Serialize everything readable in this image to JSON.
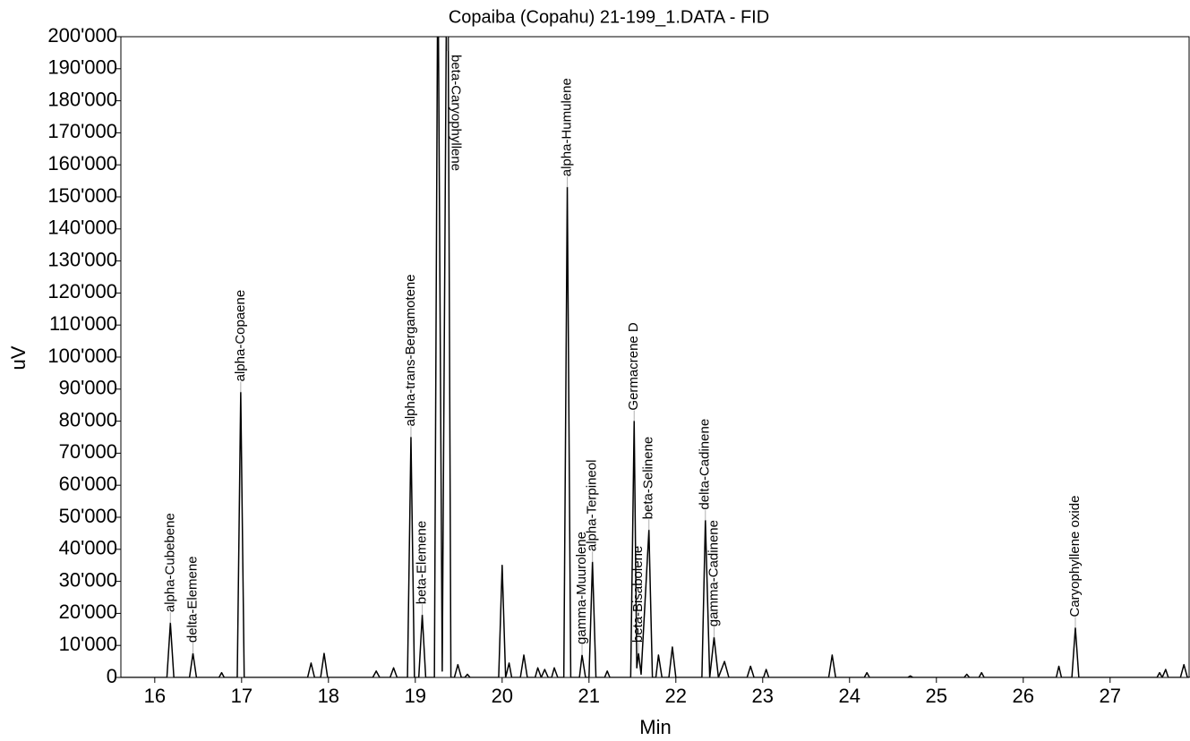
{
  "chart_data": {
    "type": "line",
    "title": "Copaiba (Copahu) 21-199_1.DATA - FID",
    "x_label": "Min",
    "y_label": "uV",
    "color": "#000000",
    "annotation_color": "#b0b0b0",
    "xlim": [
      15.61,
      27.92
    ],
    "ylim": [
      0,
      200000
    ],
    "xticks": [
      16,
      17,
      18,
      19,
      20,
      21,
      22,
      23,
      24,
      25,
      26,
      27
    ],
    "yticks": [
      0,
      {
        "value": 10000,
        "label": "10'000"
      },
      {
        "value": 20000,
        "label": "20'000"
      },
      {
        "value": 30000,
        "label": "30'000"
      },
      {
        "value": 40000,
        "label": "40'000"
      },
      {
        "value": 50000,
        "label": "50'000"
      },
      {
        "value": 60000,
        "label": "60'000"
      },
      {
        "value": 70000,
        "label": "70'000"
      },
      {
        "value": 80000,
        "label": "80'000"
      },
      {
        "value": 90000,
        "label": "90'000"
      },
      {
        "value": 100000,
        "label": "100'000"
      },
      {
        "value": 110000,
        "label": "110'000"
      },
      {
        "value": 120000,
        "label": "120'000"
      },
      {
        "value": 130000,
        "label": "130'000"
      },
      {
        "value": 140000,
        "label": "140'000"
      },
      {
        "value": 150000,
        "label": "150'000"
      },
      {
        "value": 160000,
        "label": "160'000"
      },
      {
        "value": 170000,
        "label": "170'000"
      },
      {
        "value": 180000,
        "label": "180'000"
      },
      {
        "value": 190000,
        "label": "190'000"
      },
      {
        "value": 200000,
        "label": "200'000"
      }
    ],
    "x": [
      15.61,
      16.14,
      16.18,
      16.22,
      16.4,
      16.44,
      16.48,
      16.74,
      16.77,
      16.8,
      16.95,
      16.99,
      17.03,
      17.76,
      17.8,
      17.84,
      17.91,
      17.95,
      17.99,
      18.51,
      18.55,
      18.59,
      18.71,
      18.75,
      18.79,
      18.91,
      18.95,
      18.99,
      19.04,
      19.08,
      19.12,
      19.22,
      19.26,
      19.31,
      19.37,
      19.41,
      19.45,
      19.49,
      19.53,
      19.57,
      19.6,
      19.63,
      19.96,
      20.0,
      20.04,
      20.08,
      20.11,
      20.21,
      20.25,
      20.29,
      20.38,
      20.41,
      20.45,
      20.49,
      20.53,
      20.57,
      20.6,
      20.64,
      20.71,
      20.75,
      20.79,
      20.89,
      20.92,
      20.96,
      21.0,
      21.04,
      21.08,
      21.18,
      21.21,
      21.24,
      21.48,
      21.52,
      21.55,
      21.57,
      21.6,
      21.69,
      21.73,
      21.77,
      21.8,
      21.84,
      21.92,
      21.96,
      22.0,
      22.3,
      22.34,
      22.39,
      22.44,
      22.49,
      22.56,
      22.61,
      22.82,
      22.86,
      22.9,
      23.01,
      23.04,
      23.07,
      23.76,
      23.8,
      23.84,
      24.17,
      24.2,
      24.23,
      24.67,
      24.7,
      24.73,
      25.32,
      25.35,
      25.38,
      25.49,
      25.52,
      25.55,
      26.38,
      26.41,
      26.44,
      26.56,
      26.6,
      26.64,
      27.54,
      27.57,
      27.6,
      27.64,
      27.67,
      27.81,
      27.85,
      27.89,
      27.92
    ],
    "values": [
      0,
      0,
      17000,
      0,
      0,
      7500,
      0,
      0,
      1500,
      0,
      0,
      89000,
      0,
      0,
      4500,
      0,
      0,
      7500,
      0,
      0,
      2000,
      0,
      0,
      3000,
      0,
      0,
      75000,
      0,
      0,
      19500,
      0,
      0,
      230000,
      2000,
      260000,
      0,
      0,
      4000,
      0,
      0,
      1000,
      0,
      0,
      35000,
      0,
      4500,
      0,
      0,
      7000,
      0,
      0,
      3000,
      0,
      2500,
      0,
      0,
      3000,
      0,
      0,
      153000,
      0,
      0,
      7000,
      0,
      0,
      36000,
      0,
      0,
      2000,
      0,
      0,
      80000,
      3000,
      7500,
      1000,
      46000,
      0,
      0,
      7000,
      0,
      0,
      9500,
      0,
      0,
      49000,
      0,
      12500,
      0,
      5000,
      0,
      0,
      3500,
      0,
      0,
      2500,
      0,
      0,
      7000,
      0,
      0,
      1500,
      0,
      0,
      500,
      0,
      0,
      1000,
      0,
      0,
      1500,
      0,
      0,
      3500,
      0,
      0,
      15500,
      0,
      0,
      1500,
      0,
      2500,
      0,
      0,
      4000,
      0,
      0
    ],
    "annotations": [
      {
        "text": "alpha-Cubebene",
        "x": 16.18
      },
      {
        "text": "delta-Elemene",
        "x": 16.44
      },
      {
        "text": "alpha-Copaene",
        "x": 16.99
      },
      {
        "text": "alpha-trans-Bergamotene",
        "x": 18.95
      },
      {
        "text": "beta-Elemene",
        "x": 19.08
      },
      {
        "text": "beta-Caryophyllene",
        "x": 19.37
      },
      {
        "text": "alpha-Humulene",
        "x": 20.75
      },
      {
        "text": "gamma-Muurolene",
        "x": 20.92
      },
      {
        "text": "alpha-Terpineol",
        "x": 21.04
      },
      {
        "text": "Germacrene D",
        "x": 21.52
      },
      {
        "text": "beta-Bisabolene",
        "x": 21.57
      },
      {
        "text": "beta-Selinene",
        "x": 21.69
      },
      {
        "text": "delta-Cadinene",
        "x": 22.34
      },
      {
        "text": "gamma-Cadinene",
        "x": 22.44
      },
      {
        "text": "Caryophyllene oxide",
        "x": 26.6
      }
    ]
  }
}
